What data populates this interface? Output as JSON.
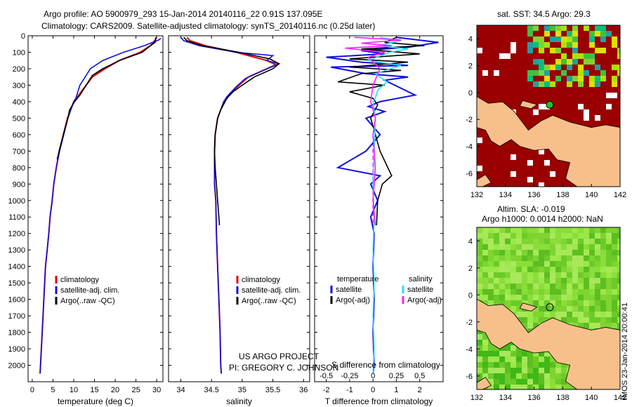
{
  "header": {
    "title_line1": "Argo profile: AO 5900979_293 15-Jan-2014 20140116_22 0.91S 137.095E",
    "title_line2": "Climatology: CARS2009. Satellite-adjusted climatology: synTS_20140116.nc (0.25d later)"
  },
  "credit": {
    "line1": "US ARGO PROJECT",
    "line2": "PI: GREGORY C. JOHNSON"
  },
  "timestamp": "IMOS 23-Jan-2014 20:00:41",
  "colors": {
    "climatology": "#e00000",
    "satellite": "#1010e0",
    "argo": "#000000",
    "sat_salinity": "#20e0ff",
    "argo_salinity": "#ff20ff",
    "land": "#f7c08a",
    "sst_warm": "#9a0000",
    "sla_green": "#7fd430"
  },
  "chart_data": [
    {
      "type": "line",
      "panel": "temperature",
      "xlabel": "temperature (deg C)",
      "ylabel": "",
      "xlim": [
        -1,
        31.5
      ],
      "ylim": [
        2100,
        0
      ],
      "xticks": [
        0,
        5,
        10,
        15,
        20,
        25,
        30
      ],
      "yticks": [
        0,
        100,
        200,
        300,
        400,
        500,
        600,
        700,
        800,
        900,
        1000,
        1100,
        1200,
        1300,
        1400,
        1500,
        1600,
        1700,
        1800,
        1900,
        2000
      ],
      "legend": [
        "climatology",
        "satellite-adj. clim.",
        "Argo(..raw -QC)"
      ],
      "legend_position": "lower-center",
      "series": [
        {
          "name": "climatology",
          "color": "#e00000",
          "points": [
            [
              30,
              10
            ],
            [
              29.5,
              30
            ],
            [
              28.5,
              60
            ],
            [
              26,
              100
            ],
            [
              21,
              150
            ],
            [
              17.5,
              200
            ],
            [
              14.5,
              250
            ],
            [
              13,
              300
            ],
            [
              11.5,
              350
            ],
            [
              10,
              400
            ],
            [
              8.5,
              500
            ],
            [
              7.5,
              600
            ],
            [
              6.5,
              700
            ],
            [
              5.8,
              800
            ],
            [
              5.2,
              900
            ],
            [
              4.8,
              1000
            ],
            [
              4.3,
              1100
            ],
            [
              4,
              1200
            ],
            [
              3.6,
              1300
            ],
            [
              3.2,
              1400
            ],
            [
              3,
              1500
            ],
            [
              2.8,
              1600
            ],
            [
              2.6,
              1700
            ],
            [
              2.4,
              1800
            ],
            [
              2.2,
              1900
            ],
            [
              2,
              2000
            ],
            [
              1.9,
              2050
            ]
          ]
        },
        {
          "name": "satellite-adj. clim.",
          "color": "#1010e0",
          "points": [
            [
              31,
              15
            ],
            [
              30.5,
              25
            ],
            [
              27,
              60
            ],
            [
              22,
              100
            ],
            [
              17,
              150
            ],
            [
              14,
              200
            ],
            [
              12.5,
              260
            ],
            [
              11.5,
              300
            ],
            [
              10.5,
              380
            ],
            [
              10,
              400
            ],
            [
              8.6,
              500
            ],
            [
              7.6,
              600
            ],
            [
              6.6,
              700
            ],
            [
              5.8,
              800
            ],
            [
              5.2,
              900
            ],
            [
              4.8,
              1000
            ],
            [
              4.3,
              1100
            ],
            [
              4,
              1200
            ],
            [
              3.6,
              1300
            ],
            [
              3.2,
              1400
            ],
            [
              3,
              1500
            ],
            [
              2.8,
              1600
            ],
            [
              2.6,
              1700
            ],
            [
              2.4,
              1800
            ],
            [
              2.2,
              1900
            ],
            [
              2,
              2000
            ],
            [
              1.9,
              2050
            ]
          ]
        },
        {
          "name": "Argo(..raw -QC)",
          "color": "#000000",
          "points": [
            [
              29.8,
              10
            ],
            [
              29.6,
              40
            ],
            [
              28,
              70
            ],
            [
              26.5,
              100
            ],
            [
              21,
              150
            ],
            [
              17,
              200
            ],
            [
              14.5,
              240
            ],
            [
              13.5,
              280
            ],
            [
              12.5,
              320
            ],
            [
              11.5,
              360
            ],
            [
              10.2,
              400
            ],
            [
              9,
              450
            ],
            [
              8.6,
              500
            ],
            [
              7.5,
              600
            ],
            [
              6.5,
              700
            ],
            [
              6,
              750
            ]
          ]
        }
      ]
    },
    {
      "type": "line",
      "panel": "salinity",
      "xlabel": "salinity",
      "ylabel": "",
      "xlim": [
        33.8,
        36.1
      ],
      "ylim": [
        2100,
        0
      ],
      "xticks": [
        34,
        34.5,
        35,
        35.5,
        36
      ],
      "xticklabels": [
        "34",
        "34.5",
        "35",
        "35.5",
        "36"
      ],
      "legend": [
        "climatology",
        "satellite-adj. clim.",
        "Argo(..raw -QC)"
      ],
      "legend_position": "lower-right",
      "series": [
        {
          "name": "climatology",
          "color": "#e00000",
          "points": [
            [
              34.1,
              10
            ],
            [
              34.15,
              30
            ],
            [
              34.4,
              60
            ],
            [
              34.9,
              100
            ],
            [
              35.4,
              150
            ],
            [
              35.55,
              175
            ],
            [
              35.4,
              200
            ],
            [
              35.1,
              250
            ],
            [
              34.95,
              300
            ],
            [
              34.8,
              350
            ],
            [
              34.7,
              400
            ],
            [
              34.6,
              500
            ],
            [
              34.56,
              600
            ],
            [
              34.55,
              700
            ],
            [
              34.55,
              800
            ],
            [
              34.55,
              900
            ],
            [
              34.57,
              1000
            ],
            [
              34.58,
              1200
            ],
            [
              34.6,
              1400
            ],
            [
              34.62,
              1600
            ],
            [
              34.64,
              1800
            ],
            [
              34.65,
              2000
            ],
            [
              34.66,
              2050
            ]
          ]
        },
        {
          "name": "satellite-adj. clim.",
          "color": "#1010e0",
          "points": [
            [
              34.0,
              10
            ],
            [
              34.05,
              30
            ],
            [
              34.3,
              60
            ],
            [
              34.9,
              100
            ],
            [
              35.5,
              120
            ],
            [
              35.4,
              150
            ],
            [
              35.6,
              170
            ],
            [
              35.35,
              210
            ],
            [
              35.05,
              260
            ],
            [
              34.9,
              310
            ],
            [
              34.75,
              370
            ],
            [
              34.7,
              400
            ],
            [
              34.6,
              500
            ],
            [
              34.56,
              600
            ],
            [
              34.55,
              700
            ],
            [
              34.55,
              800
            ],
            [
              34.55,
              900
            ],
            [
              34.57,
              1000
            ],
            [
              34.58,
              1200
            ],
            [
              34.6,
              1400
            ],
            [
              34.62,
              1600
            ],
            [
              34.64,
              1800
            ],
            [
              34.65,
              2000
            ],
            [
              34.66,
              2050
            ]
          ]
        },
        {
          "name": "Argo(..raw -QC)",
          "color": "#000000",
          "points": [
            [
              34.05,
              10
            ],
            [
              34.1,
              30
            ],
            [
              34.35,
              60
            ],
            [
              34.95,
              100
            ],
            [
              35.45,
              140
            ],
            [
              35.6,
              170
            ],
            [
              35.5,
              200
            ],
            [
              35.2,
              250
            ],
            [
              35.0,
              300
            ],
            [
              34.85,
              340
            ],
            [
              34.75,
              380
            ],
            [
              34.65,
              450
            ],
            [
              34.6,
              500
            ],
            [
              34.56,
              600
            ],
            [
              34.55,
              700
            ],
            [
              34.56,
              800
            ],
            [
              34.58,
              900
            ],
            [
              34.6,
              1000
            ],
            [
              34.62,
              1100
            ],
            [
              34.63,
              1150
            ]
          ]
        }
      ]
    },
    {
      "type": "line",
      "panel": "differences",
      "xlabel": "T difference from climatology",
      "xlabel_top": "S difference from climatology",
      "xlim": [
        -2.5,
        3
      ],
      "ylim": [
        2100,
        0
      ],
      "xticks": [
        -2,
        -1,
        0,
        1,
        2
      ],
      "xticks_s": [
        -0.5,
        -0.25,
        0,
        0.25,
        0.5
      ],
      "xticks_s_labels": [
        "-0.5",
        "-0.25",
        "0",
        "0.25",
        "0.5"
      ],
      "legend_temperature_title": "temperature",
      "legend_salinity_title": "salinity",
      "legend": [
        "satellite",
        "Argo(-adj)",
        "satellite",
        "Argo(-adj)"
      ],
      "series": [
        {
          "name": "satellite",
          "color": "#1010e0",
          "points": [
            [
              1,
              10
            ],
            [
              2.8,
              40
            ],
            [
              1.5,
              70
            ],
            [
              -0.5,
              90
            ],
            [
              0.5,
              110
            ],
            [
              -2,
              130
            ],
            [
              -0.5,
              160
            ],
            [
              1.5,
              180
            ],
            [
              -1.8,
              190
            ],
            [
              -0.3,
              230
            ],
            [
              1.5,
              250
            ],
            [
              0.5,
              270
            ],
            [
              1.8,
              360
            ],
            [
              0.3,
              400
            ],
            [
              -0.2,
              430
            ],
            [
              0.5,
              460
            ],
            [
              -0.3,
              500
            ],
            [
              0.3,
              600
            ],
            [
              -0.3,
              700
            ],
            [
              -1.5,
              800
            ],
            [
              0.3,
              850
            ],
            [
              -0.1,
              900
            ],
            [
              0.2,
              1000
            ],
            [
              -0.1,
              1100
            ],
            [
              0.05,
              1200
            ],
            [
              0,
              1400
            ],
            [
              0.05,
              1600
            ],
            [
              0,
              1800
            ],
            [
              0.05,
              2000
            ],
            [
              0,
              2050
            ]
          ]
        },
        {
          "name": "Argo(-adj)",
          "color": "#000000",
          "points": [
            [
              1,
              10
            ],
            [
              0.5,
              40
            ],
            [
              2.2,
              60
            ],
            [
              -0.5,
              80
            ],
            [
              2,
              110
            ],
            [
              -1,
              140
            ],
            [
              1.5,
              160
            ],
            [
              -1,
              190
            ],
            [
              1.2,
              210
            ],
            [
              -0.5,
              230
            ],
            [
              -1.5,
              280
            ],
            [
              0.5,
              300
            ],
            [
              -1,
              340
            ],
            [
              0,
              380
            ],
            [
              0.2,
              420
            ],
            [
              -0.1,
              500
            ],
            [
              0.3,
              700
            ],
            [
              0.8,
              850
            ],
            [
              0.4,
              900
            ],
            [
              0.2,
              1000
            ],
            [
              0.15,
              1150
            ]
          ]
        },
        {
          "name": "satellite",
          "color": "#20e0ff",
          "points": [
            [
              0.3,
              10
            ],
            [
              1.2,
              30
            ],
            [
              0.2,
              60
            ],
            [
              1.5,
              80
            ],
            [
              0.7,
              100
            ],
            [
              -0.2,
              150
            ],
            [
              1.2,
              180
            ],
            [
              0.1,
              230
            ],
            [
              0.6,
              280
            ],
            [
              0.2,
              330
            ],
            [
              0.1,
              380
            ],
            [
              0,
              400
            ],
            [
              0.1,
              500
            ],
            [
              0.05,
              700
            ],
            [
              0,
              900
            ],
            [
              0.05,
              1100
            ],
            [
              0,
              1300
            ],
            [
              0.05,
              1500
            ],
            [
              0,
              1700
            ],
            [
              0.05,
              1900
            ],
            [
              0,
              2050
            ]
          ]
        },
        {
          "name": "Argo(-adj)",
          "color": "#ff20ff",
          "points": [
            [
              -0.8,
              10
            ],
            [
              1.2,
              25
            ],
            [
              -0.5,
              45
            ],
            [
              0.8,
              60
            ],
            [
              -1.2,
              75
            ],
            [
              0.5,
              100
            ],
            [
              -0.2,
              130
            ],
            [
              0.3,
              200
            ],
            [
              0,
              300
            ],
            [
              -0.1,
              400
            ],
            [
              0.1,
              500
            ],
            [
              0,
              600
            ],
            [
              0.1,
              800
            ],
            [
              0,
              1000
            ],
            [
              0.1,
              1150
            ]
          ]
        }
      ]
    },
    {
      "type": "heatmap",
      "panel": "sst_map",
      "title": "sat. SST: 34.5 Argo: 29.3",
      "xlim": [
        132,
        142
      ],
      "ylim": [
        -7,
        5
      ],
      "xticks": [
        132,
        134,
        136,
        138,
        140,
        142
      ],
      "yticks": [
        -6,
        -4,
        -2,
        0,
        2,
        4
      ],
      "argo_position": [
        137.095,
        -0.91
      ]
    },
    {
      "type": "heatmap",
      "panel": "sla_map",
      "title_line1": "Altim. SLA: -0.019",
      "title_line2": "Argo h1000: 0.0014 h2000: NaN",
      "xlim": [
        132,
        142
      ],
      "ylim": [
        -7,
        5
      ],
      "xticks": [
        132,
        134,
        136,
        138,
        140,
        142
      ],
      "yticks": [
        -6,
        -4,
        -2,
        0,
        2,
        4
      ],
      "argo_position": [
        137.095,
        -0.91
      ]
    }
  ]
}
